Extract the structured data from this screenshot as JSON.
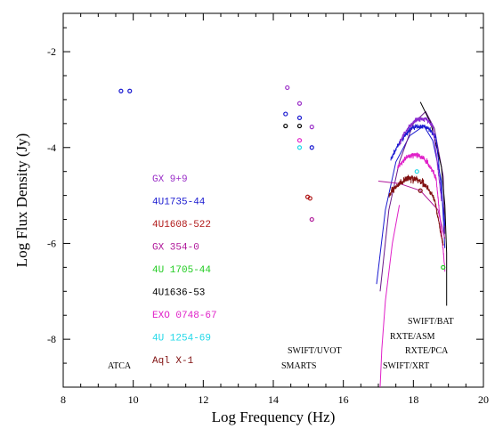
{
  "chart_data": {
    "type": "scatter",
    "title": "",
    "xlabel": "Log Frequency (Hz)",
    "ylabel": "Log Flux Density (Jy)",
    "xlim": [
      8,
      20
    ],
    "ylim": [
      -9,
      -1.2
    ],
    "x_ticks": [
      "8",
      "10",
      "12",
      "14",
      "16",
      "18",
      "20"
    ],
    "y_ticks": [
      "-2",
      "-4",
      "-6",
      "-8"
    ],
    "grid": false,
    "legend_position": "center-left",
    "series": [
      {
        "name": "GX 9+9",
        "color": "#9b30c8",
        "points": [
          [
            14.4,
            -2.75
          ],
          [
            14.75,
            -3.08
          ],
          [
            15.1,
            -3.57
          ]
        ]
      },
      {
        "name": "4U1735-44",
        "color": "#1a1ad0",
        "points": [
          [
            9.65,
            -2.82
          ],
          [
            9.9,
            -2.82
          ],
          [
            14.35,
            -3.3
          ],
          [
            14.75,
            -3.38
          ],
          [
            15.1,
            -4.0
          ]
        ]
      },
      {
        "name": "4U1608-522",
        "color": "#b01818",
        "points": [
          [
            14.98,
            -5.03
          ],
          [
            15.05,
            -5.06
          ]
        ]
      },
      {
        "name": "GX 354-0",
        "color": "#b0189a",
        "points": [
          [
            15.1,
            -5.5
          ]
        ]
      },
      {
        "name": "4U 1705-44",
        "color": "#22cc22",
        "points": [
          [
            18.85,
            -6.5
          ]
        ]
      },
      {
        "name": "4U1636-53",
        "color": "#000000",
        "points": [
          [
            14.35,
            -3.55
          ],
          [
            14.75,
            -3.55
          ]
        ]
      },
      {
        "name": "EXO 0748-67",
        "color": "#e020c8",
        "points": [
          [
            14.75,
            -3.85
          ]
        ]
      },
      {
        "name": "4U 1254-69",
        "color": "#20d8e8",
        "points": [
          [
            14.75,
            -4.0
          ],
          [
            18.1,
            -4.5
          ]
        ]
      },
      {
        "name": "Aql X-1",
        "color": "#801010",
        "points": [
          [
            18.2,
            -4.9
          ]
        ]
      }
    ],
    "annotations": [
      "ATCA",
      "SWIFT/UVOT",
      "SMARTS",
      "SWIFT/BAT",
      "RXTE/ASM",
      "RXTE/PCA",
      "SWIFT/XRT"
    ]
  }
}
